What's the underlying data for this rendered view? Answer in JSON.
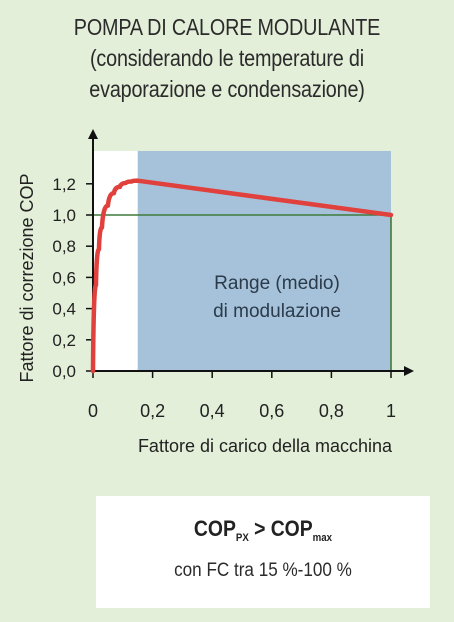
{
  "title": {
    "line1": "POMPA DI CALORE MODULANTE",
    "line2": "(considerando le temperature di",
    "line3": "evaporazione e condensazione)"
  },
  "chart_data": {
    "type": "line",
    "xlabel": "Fattore di carico della macchina",
    "ylabel": "Fattore di correzione COP",
    "xlim": [
      0,
      1
    ],
    "ylim": [
      0,
      1.3
    ],
    "x_ticks": [
      "0",
      "0,2",
      "0,4",
      "0,6",
      "0,8",
      "1"
    ],
    "x_tick_values": [
      0,
      0.2,
      0.4,
      0.6,
      0.8,
      1
    ],
    "y_ticks": [
      "0,0",
      "0,2",
      "0,4",
      "0,6",
      "0,8",
      "1,0",
      "1,2"
    ],
    "y_tick_values": [
      0,
      0.2,
      0.4,
      0.6,
      0.8,
      1.0,
      1.2
    ],
    "series": [
      {
        "x": [
          0,
          0.01,
          0.02,
          0.03,
          0.05,
          0.07,
          0.09,
          0.11,
          0.13,
          0.15,
          1.0
        ],
        "y": [
          0,
          0.55,
          0.78,
          0.92,
          1.06,
          1.14,
          1.18,
          1.205,
          1.215,
          1.22,
          1.0
        ],
        "color": "#e0413c"
      }
    ],
    "reference_line": {
      "y": 1.0,
      "color": "#3f7a3a"
    },
    "modulation_range": {
      "x_start": 0.15,
      "x_end": 1.0,
      "color": "#a6c2da",
      "label_line1": "Range (medio)",
      "label_line2": "di modulazione"
    },
    "plot_background": "#ffffff",
    "axis_color": "#111111"
  },
  "info": {
    "cop": "COP",
    "px": "PX",
    "gt": ">",
    "max": "max",
    "fc_text": "con FC tra 15 %-100 %"
  }
}
